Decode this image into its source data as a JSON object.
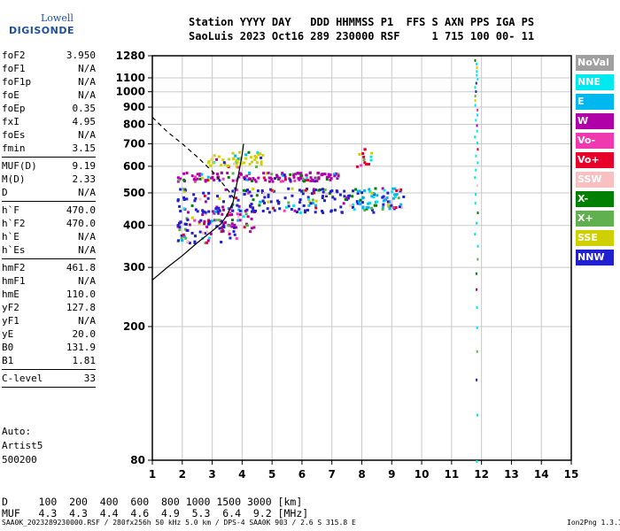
{
  "logo": {
    "line1": "Lowell",
    "line2": "DIGISONDE"
  },
  "header": {
    "labels": "Station YYYY DAY   DDD HHMMSS P1  FFS S AXN PPS IGA PS",
    "values": "SaoLuis 2023 Oct16 289 230000 RSF     1 715 100 00- 11"
  },
  "params_group1": [
    {
      "k": "foF2",
      "v": "3.950"
    },
    {
      "k": "foF1",
      "v": "N/A"
    },
    {
      "k": "foF1p",
      "v": "N/A"
    },
    {
      "k": "foE",
      "v": "N/A"
    },
    {
      "k": "foEp",
      "v": "0.35"
    },
    {
      "k": "fxI",
      "v": "4.95"
    },
    {
      "k": "foEs",
      "v": "N/A"
    },
    {
      "k": "fmin",
      "v": "3.15"
    }
  ],
  "params_group2": [
    {
      "k": "MUF(D)",
      "v": "9.19"
    },
    {
      "k": "M(D)",
      "v": "2.33"
    },
    {
      "k": "D",
      "v": "N/A"
    }
  ],
  "params_group3": [
    {
      "k": "h`F",
      "v": "470.0"
    },
    {
      "k": "h`F2",
      "v": "470.0"
    },
    {
      "k": "h`E",
      "v": "N/A"
    },
    {
      "k": "h`Es",
      "v": "N/A"
    }
  ],
  "params_group4": [
    {
      "k": "hmF2",
      "v": "461.8"
    },
    {
      "k": "hmF1",
      "v": "N/A"
    },
    {
      "k": "hmE",
      "v": "110.0"
    },
    {
      "k": "yF2",
      "v": "127.8"
    },
    {
      "k": "yF1",
      "v": "N/A"
    },
    {
      "k": "yE",
      "v": "20.0"
    },
    {
      "k": "B0",
      "v": "131.9"
    },
    {
      "k": "B1",
      "v": "1.81"
    }
  ],
  "params_group5": [
    {
      "k": "C-level",
      "v": "33"
    }
  ],
  "auto": {
    "line1": "Auto:",
    "line2": "Artist5",
    "line3": "500200"
  },
  "legend": [
    {
      "label": "NoVal",
      "color": "#a0a0a0"
    },
    {
      "label": "NNE",
      "color": "#00e8f0"
    },
    {
      "label": "E",
      "color": "#00b8f0"
    },
    {
      "label": "W",
      "color": "#b000a8"
    },
    {
      "label": "Vo-",
      "color": "#f038b0"
    },
    {
      "label": "Vo+",
      "color": "#e8002a"
    },
    {
      "label": "SSW",
      "color": "#f8c0c0"
    },
    {
      "label": "X-",
      "color": "#008000"
    },
    {
      "label": "X+",
      "color": "#60b050"
    },
    {
      "label": "SSE",
      "color": "#d0d000"
    },
    {
      "label": "NNW",
      "color": "#2020d0"
    }
  ],
  "muf_table": {
    "row1": "D     100  200  400  600  800 1000 1500 3000 [km]",
    "row2": "MUF   4.3  4.3  4.4  4.6  4.9  5.3  6.4  9.2 [MHz]"
  },
  "footer": {
    "left": "SAA0K_2023289230000.RSF / 280fx256h 50 kHz 5.0 km / DPS-4 SAA0K 903 / 2.6 S 315.8 E",
    "right": "Ion2Png 1.3.17"
  },
  "chart_data": {
    "type": "scatter",
    "title": "",
    "xlabel": "",
    "ylabel": "",
    "xlim": [
      1,
      15
    ],
    "ylim": [
      80,
      1280
    ],
    "x_ticks": [
      1,
      2,
      3,
      4,
      5,
      6,
      7,
      8,
      9,
      10,
      11,
      12,
      13,
      14,
      15
    ],
    "y_ticks": [
      80,
      200,
      300,
      400,
      500,
      600,
      700,
      800,
      900,
      1000,
      1100,
      1280
    ],
    "y_scale": "log",
    "grid": true,
    "clusters": [
      {
        "name": "F2 O-trace",
        "x_range": [
          1.8,
          4.4
        ],
        "y_range": [
          380,
          460
        ],
        "color": "#b000a8"
      },
      {
        "name": "F2 lower",
        "x_range": [
          1.8,
          4.0
        ],
        "y_range": [
          355,
          420
        ],
        "color": "#2020d0"
      },
      {
        "name": "F2 main",
        "x_range": [
          1.8,
          9.5
        ],
        "y_range": [
          440,
          520
        ],
        "color": "#2020d0"
      },
      {
        "name": "F2 band 560",
        "x_range": [
          1.8,
          7.2
        ],
        "y_range": [
          545,
          580
        ],
        "color": "#b000a8"
      },
      {
        "name": "F2 upper",
        "x_range": [
          2.8,
          4.7
        ],
        "y_range": [
          600,
          670
        ],
        "color": "#d0d000"
      },
      {
        "name": "Spread 8-9",
        "x_range": [
          7.7,
          9.3
        ],
        "y_range": [
          450,
          520
        ],
        "color": "#00b8f0"
      },
      {
        "name": "Spread 8 high",
        "x_range": [
          7.8,
          8.3
        ],
        "y_range": [
          600,
          680
        ],
        "color": "#e8002a"
      },
      {
        "name": "Vertical 11.8",
        "x_range": [
          11.75,
          11.85
        ],
        "y_range": [
          80,
          1280
        ],
        "color": "#00e8f0"
      }
    ],
    "profile_curve": [
      [
        1.0,
        275
      ],
      [
        1.5,
        300
      ],
      [
        2.0,
        325
      ],
      [
        2.5,
        355
      ],
      [
        3.0,
        385
      ],
      [
        3.3,
        405
      ],
      [
        3.5,
        430
      ],
      [
        3.7,
        470
      ],
      [
        3.8,
        520
      ],
      [
        3.9,
        580
      ],
      [
        4.0,
        650
      ],
      [
        4.05,
        700
      ]
    ],
    "dashed_curve": [
      [
        1.0,
        840
      ],
      [
        1.5,
        760
      ],
      [
        2.0,
        700
      ],
      [
        2.5,
        640
      ],
      [
        3.0,
        580
      ],
      [
        3.3,
        540
      ],
      [
        3.6,
        500
      ],
      [
        3.8,
        470
      ]
    ]
  }
}
